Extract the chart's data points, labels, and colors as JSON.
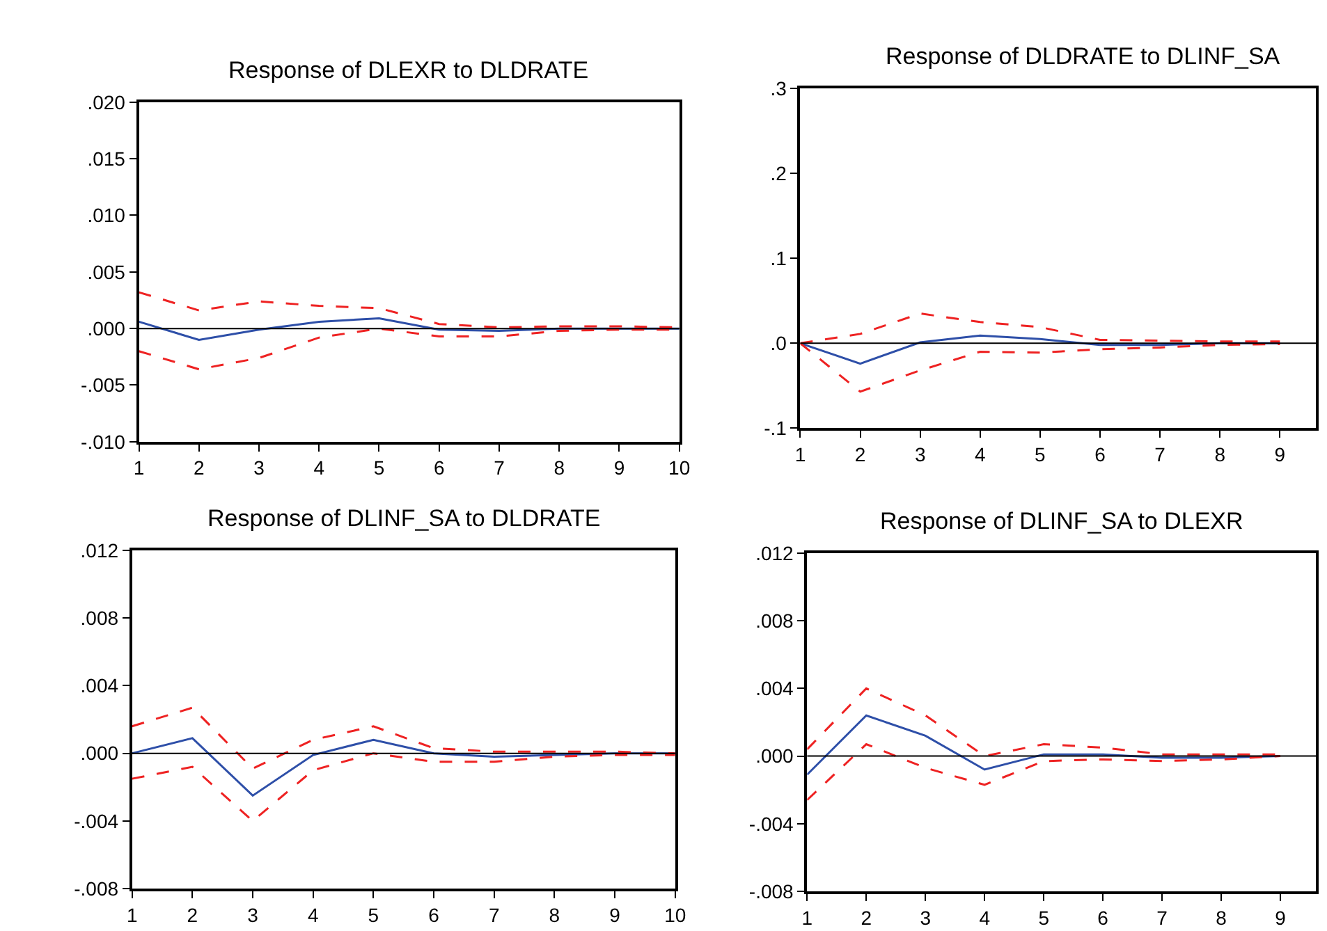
{
  "chart_data": [
    {
      "type": "line",
      "title": "Response of DLEXR to DLDRATE",
      "x": [
        1,
        2,
        3,
        4,
        5,
        6,
        7,
        8,
        9,
        10
      ],
      "xlim": [
        1,
        10
      ],
      "xticks": [
        1,
        2,
        3,
        4,
        5,
        6,
        7,
        8,
        9,
        10
      ],
      "ylim": [
        -0.01,
        0.02
      ],
      "yticks": [
        {
          "value": -0.01,
          "label": "-.010"
        },
        {
          "value": -0.005,
          "label": "-.005"
        },
        {
          "value": 0,
          "label": ".000"
        },
        {
          "value": 0.005,
          "label": ".005"
        },
        {
          "value": 0.01,
          "label": ".010"
        },
        {
          "value": 0.015,
          "label": ".015"
        },
        {
          "value": 0.02,
          "label": ".020"
        }
      ],
      "ref_lines": [
        {
          "axis": "y",
          "value": 0,
          "color": "#000000"
        }
      ],
      "series": [
        {
          "color": "#2e4fa8",
          "line_style": "solid",
          "values": [
            0.0006,
            -0.001,
            -0.0001,
            0.0006,
            0.0009,
            -0.0001,
            -0.0002,
            0,
            0,
            0
          ]
        },
        {
          "color": "#ee2222",
          "line_style": "dashed",
          "values": [
            0.0032,
            0.0016,
            0.0024,
            0.002,
            0.0018,
            0.0004,
            0.0001,
            0.0002,
            0.0002,
            0.0001
          ]
        },
        {
          "color": "#ee2222",
          "line_style": "dashed",
          "values": [
            -0.002,
            -0.0036,
            -0.0026,
            -0.0008,
            0,
            -0.0007,
            -0.0007,
            -0.0002,
            -0.0001,
            -0.0001
          ]
        }
      ]
    },
    {
      "type": "line",
      "title": "Response of DLDRATE to DLINF_SA",
      "x": [
        1,
        2,
        3,
        4,
        5,
        6,
        7,
        8,
        9
      ],
      "xlim": [
        1,
        9.6
      ],
      "xticks": [
        1,
        2,
        3,
        4,
        5,
        6,
        7,
        8,
        9
      ],
      "ylim": [
        -0.1,
        0.3
      ],
      "yticks": [
        {
          "value": -0.1,
          "label": "-.1"
        },
        {
          "value": 0,
          "label": ".0"
        },
        {
          "value": 0.1,
          "label": ".1"
        },
        {
          "value": 0.2,
          "label": ".2"
        },
        {
          "value": 0.3,
          "label": ".3"
        }
      ],
      "ref_lines": [
        {
          "axis": "y",
          "value": 0,
          "color": "#000000"
        }
      ],
      "series": [
        {
          "color": "#2e4fa8",
          "line_style": "solid",
          "values": [
            0,
            -0.024,
            0.001,
            0.009,
            0.005,
            -0.002,
            -0.002,
            0,
            0
          ]
        },
        {
          "color": "#ee2222",
          "line_style": "dashed",
          "values": [
            0,
            0.011,
            0.035,
            0.025,
            0.019,
            0.004,
            0.003,
            0.002,
            0.002
          ]
        },
        {
          "color": "#ee2222",
          "line_style": "dashed",
          "values": [
            0,
            -0.057,
            -0.032,
            -0.01,
            -0.011,
            -0.007,
            -0.005,
            -0.002,
            -0.001
          ]
        }
      ]
    },
    {
      "type": "line",
      "title": "Response of DLINF_SA to DLDRATE",
      "x": [
        1,
        2,
        3,
        4,
        5,
        6,
        7,
        8,
        9,
        10
      ],
      "xlim": [
        1,
        10
      ],
      "xticks": [
        1,
        2,
        3,
        4,
        5,
        6,
        7,
        8,
        9,
        10
      ],
      "ylim": [
        -0.008,
        0.012
      ],
      "yticks": [
        {
          "value": -0.008,
          "label": "-.008"
        },
        {
          "value": -0.004,
          "label": "-.004"
        },
        {
          "value": 0,
          "label": ".000"
        },
        {
          "value": 0.004,
          "label": ".004"
        },
        {
          "value": 0.008,
          "label": ".008"
        },
        {
          "value": 0.012,
          "label": ".012"
        }
      ],
      "ref_lines": [
        {
          "axis": "y",
          "value": 0,
          "color": "#000000"
        }
      ],
      "series": [
        {
          "color": "#2e4fa8",
          "line_style": "solid",
          "values": [
            0,
            0.0009,
            -0.0025,
            -0.0001,
            0.0008,
            0,
            -0.0002,
            -0.0001,
            0,
            0
          ]
        },
        {
          "color": "#ee2222",
          "line_style": "dashed",
          "values": [
            0.0016,
            0.0027,
            -0.0009,
            0.0008,
            0.0016,
            0.0003,
            0.0001,
            0.0001,
            0.0001,
            0
          ]
        },
        {
          "color": "#ee2222",
          "line_style": "dashed",
          "values": [
            -0.0015,
            -0.0008,
            -0.004,
            -0.001,
            0,
            -0.0005,
            -0.0005,
            -0.0002,
            -0.0001,
            -0.0001
          ]
        }
      ]
    },
    {
      "type": "line",
      "title": "Response of DLINF_SA to DLEXR",
      "x": [
        1,
        2,
        3,
        4,
        5,
        6,
        7,
        8,
        9
      ],
      "xlim": [
        1,
        9.6
      ],
      "xticks": [
        1,
        2,
        3,
        4,
        5,
        6,
        7,
        8,
        9
      ],
      "ylim": [
        -0.008,
        0.012
      ],
      "yticks": [
        {
          "value": -0.008,
          "label": "-.008"
        },
        {
          "value": -0.004,
          "label": "-.004"
        },
        {
          "value": 0,
          "label": ".000"
        },
        {
          "value": 0.004,
          "label": ".004"
        },
        {
          "value": 0.008,
          "label": ".008"
        },
        {
          "value": 0.012,
          "label": ".012"
        }
      ],
      "ref_lines": [
        {
          "axis": "y",
          "value": 0,
          "color": "#000000"
        }
      ],
      "series": [
        {
          "color": "#2e4fa8",
          "line_style": "solid",
          "values": [
            -0.0011,
            0.0024,
            0.0012,
            -0.0008,
            0.0001,
            0.0001,
            -0.0001,
            -0.0001,
            0
          ]
        },
        {
          "color": "#ee2222",
          "line_style": "dashed",
          "values": [
            0.0004,
            0.004,
            0.0024,
            0,
            0.0007,
            0.0005,
            0.0001,
            0.0001,
            0.0001
          ]
        },
        {
          "color": "#ee2222",
          "line_style": "dashed",
          "values": [
            -0.0026,
            0.0007,
            -0.0007,
            -0.0017,
            -0.0003,
            -0.0002,
            -0.0003,
            -0.0002,
            0
          ]
        }
      ]
    }
  ]
}
